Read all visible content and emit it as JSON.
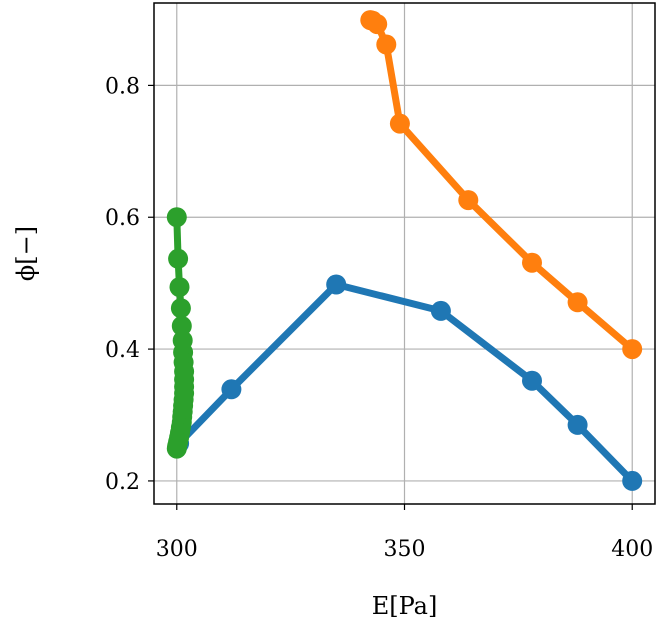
{
  "chart_data": {
    "type": "line",
    "title": "",
    "xlabel": "E[Pa]",
    "ylabel": "ϕ[−]",
    "xlim": [
      295,
      405
    ],
    "ylim": [
      0.165,
      0.925
    ],
    "xticks": [
      300,
      350,
      400
    ],
    "yticks": [
      0.2,
      0.4,
      0.6,
      0.8
    ],
    "xtick_labels": [
      "300",
      "350",
      "400"
    ],
    "ytick_labels": [
      "0.2",
      "0.4",
      "0.6",
      "0.8"
    ],
    "grid": true,
    "legend": "none",
    "series": [
      {
        "color": "#1f77b4",
        "points": [
          [
            400,
            0.2
          ],
          [
            388,
            0.285
          ],
          [
            378,
            0.352
          ],
          [
            358,
            0.458
          ],
          [
            335,
            0.498
          ],
          [
            312,
            0.339
          ],
          [
            300.5,
            0.257
          ]
        ]
      },
      {
        "color": "#ff7f0e",
        "points": [
          [
            400,
            0.4
          ],
          [
            388,
            0.471
          ],
          [
            378,
            0.531
          ],
          [
            364,
            0.626
          ],
          [
            349,
            0.742
          ],
          [
            346,
            0.862
          ],
          [
            344,
            0.893
          ],
          [
            343,
            0.898
          ],
          [
            342.5,
            0.899
          ]
        ]
      },
      {
        "color": "#2ca02c",
        "points": [
          [
            300,
            0.6
          ],
          [
            300.3,
            0.537
          ],
          [
            300.6,
            0.494
          ],
          [
            300.9,
            0.462
          ],
          [
            301.1,
            0.435
          ],
          [
            301.3,
            0.413
          ],
          [
            301.4,
            0.395
          ],
          [
            301.5,
            0.38
          ],
          [
            301.6,
            0.366
          ],
          [
            301.6,
            0.354
          ],
          [
            301.6,
            0.343
          ],
          [
            301.6,
            0.333
          ],
          [
            301.5,
            0.323
          ],
          [
            301.4,
            0.314
          ],
          [
            301.3,
            0.305
          ],
          [
            301.2,
            0.297
          ],
          [
            301.1,
            0.289
          ],
          [
            300.9,
            0.281
          ],
          [
            300.7,
            0.273
          ],
          [
            300.5,
            0.266
          ],
          [
            300.3,
            0.259
          ],
          [
            300.1,
            0.253
          ],
          [
            300,
            0.249
          ]
        ]
      }
    ]
  }
}
